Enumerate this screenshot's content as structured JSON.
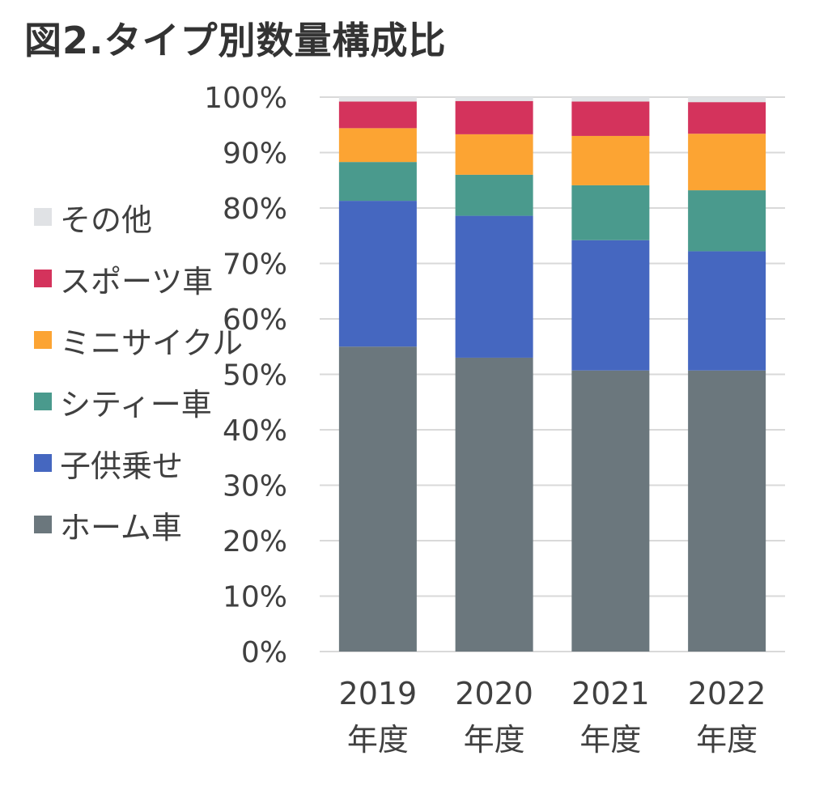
{
  "chart_data": {
    "type": "bar",
    "stacked": true,
    "title": "図2.タイプ別数量構成比",
    "categories": [
      [
        "2019",
        "年度"
      ],
      [
        "2020",
        "年度"
      ],
      [
        "2021",
        "年度"
      ],
      [
        "2022",
        "年度"
      ]
    ],
    "ylim": [
      0,
      100
    ],
    "yticks": [
      "0%",
      "10%",
      "20%",
      "30%",
      "40%",
      "50%",
      "60%",
      "70%",
      "80%",
      "90%",
      "100%"
    ],
    "grid": true,
    "legend_position": "left",
    "series": [
      {
        "name": "ホーム車",
        "color": "#6b777d",
        "values": [
          55.0,
          53.0,
          50.7,
          50.7
        ]
      },
      {
        "name": "子供乗せ",
        "color": "#4567c0",
        "values": [
          26.3,
          25.6,
          23.5,
          21.5
        ]
      },
      {
        "name": "シティー車",
        "color": "#4a9a8d",
        "values": [
          7.0,
          7.4,
          9.9,
          11.0
        ]
      },
      {
        "name": "ミニサイクル",
        "color": "#fca433",
        "values": [
          6.1,
          7.3,
          8.9,
          10.2
        ]
      },
      {
        "name": "スポーツ車",
        "color": "#d4335c",
        "values": [
          4.8,
          6.0,
          6.2,
          5.7
        ]
      },
      {
        "name": "その他",
        "color": "#e0e2e5",
        "values": [
          0.8,
          0.7,
          0.8,
          0.9
        ]
      }
    ]
  }
}
